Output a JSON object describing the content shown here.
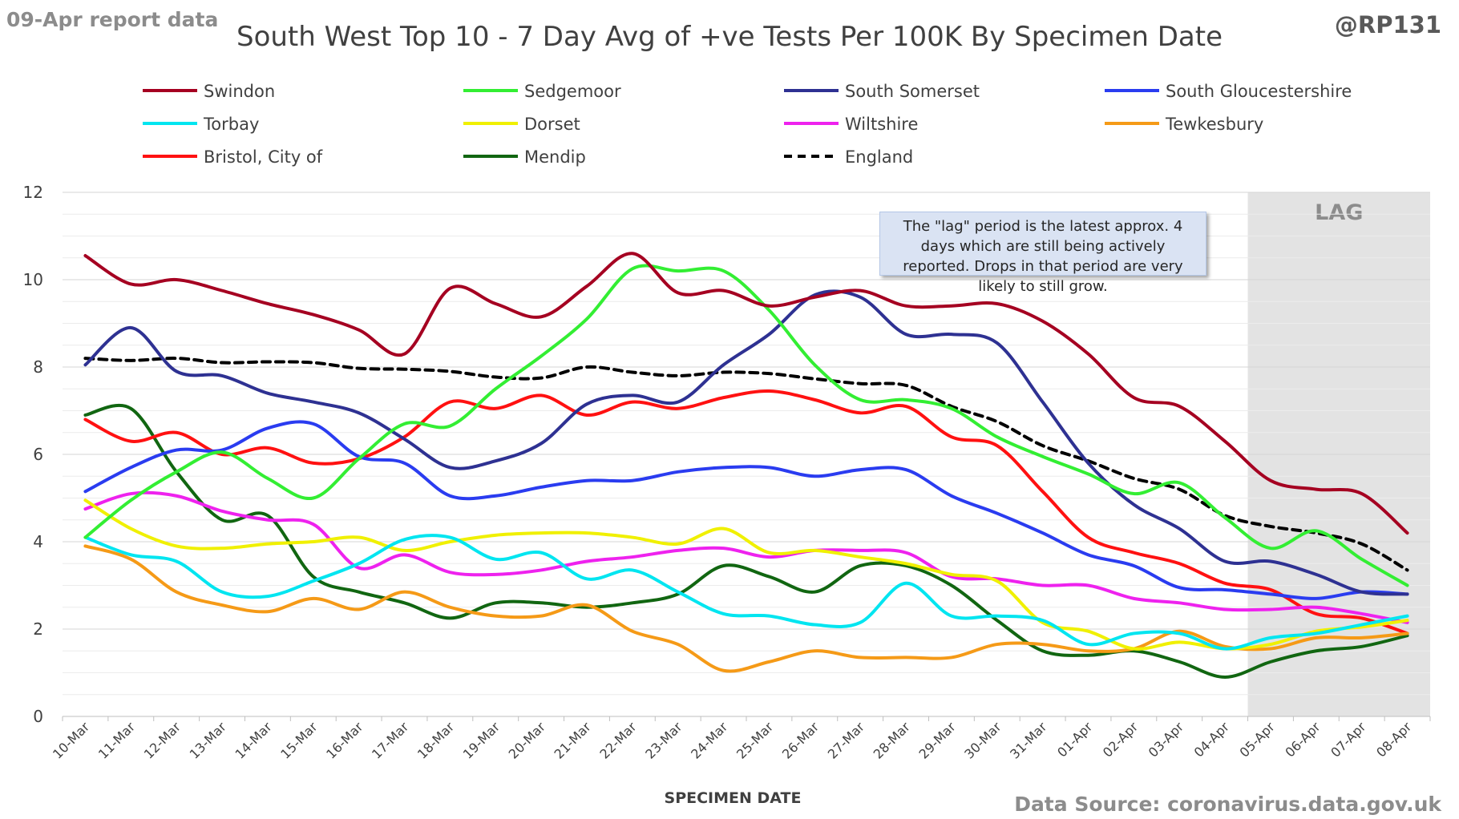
{
  "header": {
    "report_date": "09-Apr report data",
    "handle": "@RP131",
    "source": "Data Source: coronavirus.data.gov.uk"
  },
  "annotation": {
    "lag_label": "LAG",
    "note": "The \"lag\" period is the latest approx. 4 days which are still being actively reported.  Drops in that period are very likely to still grow."
  },
  "chart_data": {
    "type": "line",
    "title": "South West Top 10 - 7 Day Avg of +ve Tests Per 100K By Specimen Date",
    "xlabel": "SPECIMEN DATE",
    "ylabel": "",
    "ylim": [
      0,
      12
    ],
    "yticks": [
      0,
      2,
      4,
      6,
      8,
      10,
      12
    ],
    "grid": "horizontal",
    "legend_position": "top",
    "lag_region": [
      "05-Apr",
      "08-Apr"
    ],
    "categories": [
      "10-Mar",
      "11-Mar",
      "12-Mar",
      "13-Mar",
      "14-Mar",
      "15-Mar",
      "16-Mar",
      "17-Mar",
      "18-Mar",
      "19-Mar",
      "20-Mar",
      "21-Mar",
      "22-Mar",
      "23-Mar",
      "24-Mar",
      "25-Mar",
      "26-Mar",
      "27-Mar",
      "28-Mar",
      "29-Mar",
      "30-Mar",
      "31-Mar",
      "01-Apr",
      "02-Apr",
      "03-Apr",
      "04-Apr",
      "05-Apr",
      "06-Apr",
      "07-Apr",
      "08-Apr"
    ],
    "series": [
      {
        "name": "Swindon",
        "color": "#a50021",
        "dash": false,
        "values": [
          10.55,
          9.9,
          10.0,
          9.75,
          9.45,
          9.2,
          8.85,
          8.3,
          9.8,
          9.45,
          9.15,
          9.85,
          10.6,
          9.7,
          9.75,
          9.4,
          9.6,
          9.75,
          9.4,
          9.4,
          9.45,
          9.05,
          8.3,
          7.3,
          7.1,
          6.3,
          5.4,
          5.2,
          5.1,
          4.2
        ]
      },
      {
        "name": "Sedgemoor",
        "color": "#33ee33",
        "dash": false,
        "values": [
          4.1,
          4.95,
          5.6,
          6.05,
          5.45,
          5.0,
          5.9,
          6.7,
          6.65,
          7.5,
          8.25,
          9.1,
          10.25,
          10.2,
          10.2,
          9.3,
          8.05,
          7.25,
          7.25,
          7.05,
          6.4,
          5.95,
          5.55,
          5.1,
          5.35,
          4.55,
          3.85,
          4.25,
          3.6,
          3.0
        ]
      },
      {
        "name": "South Somerset",
        "color": "#2e3192",
        "dash": false,
        "values": [
          8.05,
          8.9,
          7.9,
          7.8,
          7.4,
          7.2,
          6.95,
          6.35,
          5.7,
          5.85,
          6.25,
          7.15,
          7.35,
          7.2,
          8.05,
          8.75,
          9.65,
          9.6,
          8.75,
          8.75,
          8.55,
          7.2,
          5.8,
          4.85,
          4.3,
          3.55,
          3.55,
          3.25,
          2.85,
          2.8
        ]
      },
      {
        "name": "South Gloucestershire",
        "color": "#2a3cf0",
        "dash": false,
        "values": [
          5.15,
          5.7,
          6.1,
          6.1,
          6.6,
          6.7,
          5.95,
          5.8,
          5.05,
          5.05,
          5.25,
          5.4,
          5.4,
          5.6,
          5.7,
          5.7,
          5.5,
          5.65,
          5.65,
          5.05,
          4.65,
          4.2,
          3.7,
          3.45,
          2.95,
          2.9,
          2.8,
          2.7,
          2.85,
          2.8
        ]
      },
      {
        "name": "Torbay",
        "color": "#00e5f0",
        "dash": false,
        "values": [
          4.1,
          3.7,
          3.55,
          2.85,
          2.75,
          3.1,
          3.5,
          4.05,
          4.1,
          3.6,
          3.75,
          3.15,
          3.35,
          2.85,
          2.35,
          2.3,
          2.1,
          2.15,
          3.05,
          2.3,
          2.3,
          2.2,
          1.65,
          1.9,
          1.9,
          1.55,
          1.8,
          1.9,
          2.1,
          2.3
        ]
      },
      {
        "name": "Dorset",
        "color": "#f0f000",
        "dash": false,
        "values": [
          4.95,
          4.3,
          3.9,
          3.85,
          3.95,
          4.0,
          4.1,
          3.8,
          4.0,
          4.15,
          4.2,
          4.2,
          4.1,
          3.95,
          4.3,
          3.75,
          3.8,
          3.65,
          3.5,
          3.25,
          3.1,
          2.15,
          1.95,
          1.55,
          1.7,
          1.55,
          1.65,
          1.95,
          2.05,
          2.2
        ]
      },
      {
        "name": "Wiltshire",
        "color": "#ee22ee",
        "dash": false,
        "values": [
          4.75,
          5.1,
          5.05,
          4.7,
          4.5,
          4.4,
          3.4,
          3.7,
          3.3,
          3.25,
          3.35,
          3.55,
          3.65,
          3.8,
          3.85,
          3.65,
          3.8,
          3.8,
          3.75,
          3.2,
          3.15,
          3.0,
          3.0,
          2.7,
          2.6,
          2.45,
          2.45,
          2.5,
          2.35,
          2.15
        ]
      },
      {
        "name": "Tewkesbury",
        "color": "#f59a17",
        "dash": false,
        "values": [
          3.9,
          3.6,
          2.85,
          2.55,
          2.4,
          2.7,
          2.45,
          2.85,
          2.5,
          2.3,
          2.3,
          2.55,
          1.95,
          1.65,
          1.05,
          1.25,
          1.5,
          1.35,
          1.35,
          1.35,
          1.65,
          1.65,
          1.5,
          1.55,
          1.95,
          1.6,
          1.55,
          1.8,
          1.8,
          1.9
        ]
      },
      {
        "name": "Bristol, City of",
        "color": "#ff1111",
        "dash": false,
        "values": [
          6.8,
          6.3,
          6.5,
          6.0,
          6.15,
          5.8,
          5.9,
          6.4,
          7.2,
          7.05,
          7.35,
          6.9,
          7.2,
          7.05,
          7.3,
          7.45,
          7.25,
          6.95,
          7.1,
          6.4,
          6.2,
          5.15,
          4.1,
          3.75,
          3.5,
          3.05,
          2.9,
          2.35,
          2.25,
          1.9
        ]
      },
      {
        "name": "Mendip",
        "color": "#116611",
        "dash": false,
        "values": [
          6.9,
          7.05,
          5.6,
          4.5,
          4.6,
          3.2,
          2.85,
          2.6,
          2.25,
          2.6,
          2.6,
          2.5,
          2.6,
          2.8,
          3.45,
          3.2,
          2.85,
          3.45,
          3.45,
          3.0,
          2.2,
          1.5,
          1.4,
          1.5,
          1.25,
          0.9,
          1.25,
          1.5,
          1.6,
          1.85
        ]
      },
      {
        "name": "England",
        "color": "#000000",
        "dash": true,
        "values": [
          8.2,
          8.15,
          8.2,
          8.1,
          8.12,
          8.1,
          7.97,
          7.95,
          7.9,
          7.77,
          7.75,
          8.0,
          7.88,
          7.8,
          7.88,
          7.85,
          7.73,
          7.62,
          7.58,
          7.1,
          6.75,
          6.2,
          5.85,
          5.45,
          5.2,
          4.6,
          4.35,
          4.2,
          3.95,
          3.35
        ]
      }
    ]
  }
}
